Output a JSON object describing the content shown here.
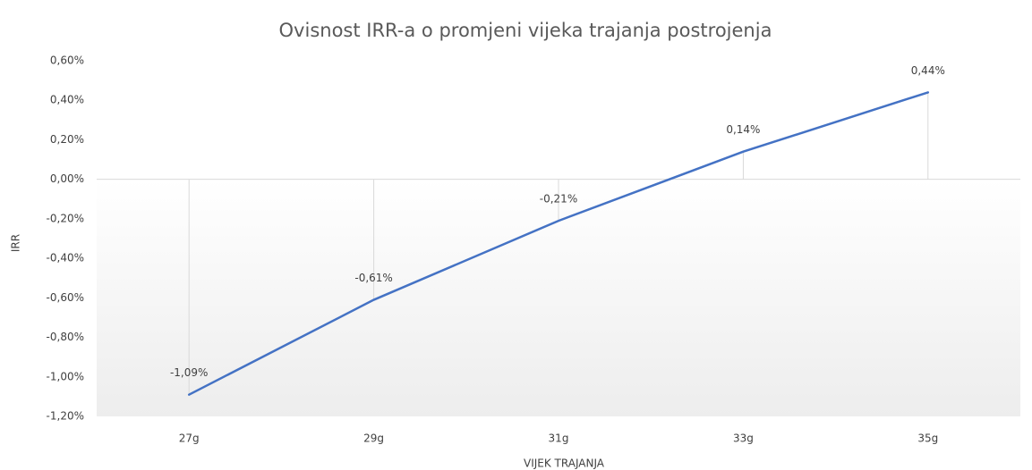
{
  "chart_data": {
    "type": "line",
    "title": "Ovisnost IRR-a o promjeni vijeka trajanja postrojenja",
    "x_label": "VIJEK TRAJANJA",
    "y_label": "IRR",
    "categories": [
      "27g",
      "29g",
      "31g",
      "33g",
      "35g"
    ],
    "series": [
      {
        "name": "IRR",
        "color": "#4472c4",
        "values": [
          -1.09,
          -0.61,
          -0.21,
          0.14,
          0.44
        ],
        "value_labels": [
          "-1,09%",
          "-0,61%",
          "-0,21%",
          "0,14%",
          "0,44%"
        ]
      }
    ],
    "ylim": [
      -1.2,
      0.6
    ],
    "yticks": [
      {
        "value": 0.6,
        "label": "0,60%"
      },
      {
        "value": 0.4,
        "label": "0,40%"
      },
      {
        "value": 0.2,
        "label": "0,20%"
      },
      {
        "value": 0,
        "label": "0,00%"
      },
      {
        "value": -0.2,
        "label": "-0,20%"
      },
      {
        "value": -0.4,
        "label": "-0,40%"
      },
      {
        "value": -0.6,
        "label": "-0,60%"
      },
      {
        "value": -0.8,
        "label": "-0,80%"
      },
      {
        "value": -1.0,
        "label": "-1,00%"
      },
      {
        "value": -1.2,
        "label": "-1,20%"
      }
    ]
  }
}
